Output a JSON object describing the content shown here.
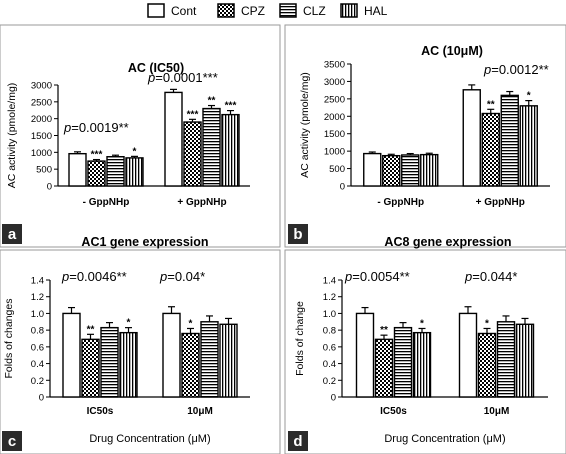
{
  "legend": [
    "Cont",
    "CPZ",
    "CLZ",
    "HAL"
  ],
  "series_styles": {
    "Cont": {
      "fill": "#ffffff",
      "pattern": "none"
    },
    "CPZ": {
      "fill": "#ffffff",
      "pattern": "checker"
    },
    "CLZ": {
      "fill": "#ffffff",
      "pattern": "horizontal-lines"
    },
    "HAL": {
      "fill": "#ffffff",
      "pattern": "vertical-lines"
    }
  },
  "panels": [
    {
      "label": "a",
      "background": "#ffffff",
      "label_color": "#2b2b2b"
    },
    {
      "label": "b",
      "background": "#ffffff",
      "label_color": "#2b2b2b"
    },
    {
      "label": "c",
      "background": "#ffffff",
      "label_color": "#2b2b2b"
    },
    {
      "label": "d",
      "background": "#ffffff",
      "label_color": "#2b2b2b"
    }
  ],
  "chart_data": [
    {
      "type": "bar",
      "title": "AC (IC50)",
      "xlabel": "",
      "ylabel": "AC activity (pmole/mg)",
      "ylim": [
        0,
        3000
      ],
      "yticks": [
        "0",
        "500",
        "1000",
        "1500",
        "2000",
        "2500",
        "3000"
      ],
      "categories": [
        "- GppNHp",
        "+ GppNHp"
      ],
      "series": [
        {
          "name": "Cont",
          "values": [
            960,
            2780
          ],
          "errors": [
            55,
            90
          ]
        },
        {
          "name": "CPZ",
          "values": [
            740,
            1900
          ],
          "errors": [
            45,
            80
          ]
        },
        {
          "name": "CLZ",
          "values": [
            870,
            2300
          ],
          "errors": [
            45,
            90
          ]
        },
        {
          "name": "HAL",
          "values": [
            835,
            2120
          ],
          "errors": [
            45,
            120
          ]
        }
      ],
      "significance": [
        [
          "***",
          "",
          "*"
        ],
        [
          "***",
          "**",
          "***"
        ]
      ],
      "pvalues": [
        {
          "p": "=0.0019**",
          "x": 0
        },
        {
          "p": "=0.0001***",
          "x": 1
        }
      ]
    },
    {
      "type": "bar",
      "title": "AC (10μM)",
      "xlabel": "",
      "ylabel": "AC activity (pmole/mg)",
      "ylim": [
        0,
        3500
      ],
      "yticks": [
        "0",
        "500",
        "1000",
        "1500",
        "2000",
        "2500",
        "3000",
        "3500"
      ],
      "categories": [
        "- GppNHp",
        "+ GppNHp"
      ],
      "series": [
        {
          "name": "Cont",
          "values": [
            930,
            2760
          ],
          "errors": [
            45,
            140
          ]
        },
        {
          "name": "CPZ",
          "values": [
            870,
            2080
          ],
          "errors": [
            40,
            120
          ]
        },
        {
          "name": "CLZ",
          "values": [
            890,
            2600
          ],
          "errors": [
            40,
            110
          ]
        },
        {
          "name": "HAL",
          "values": [
            900,
            2300
          ],
          "errors": [
            40,
            150
          ]
        }
      ],
      "significance": [
        [
          "",
          "",
          ""
        ],
        [
          "**",
          "",
          "*"
        ]
      ],
      "pvalues": [
        {
          "p": "=0.0012**",
          "x": 1
        }
      ]
    },
    {
      "type": "bar",
      "title": "AC1 gene expression",
      "xlabel": "Drug Concentration (μM)",
      "ylabel": "Folds of changes",
      "ylim": [
        0,
        1.4
      ],
      "yticks": [
        "0",
        "0.2",
        "0.4",
        "0.6",
        "0.8",
        "1.0",
        "1.2",
        "1.4"
      ],
      "categories": [
        "IC50s",
        "10μM"
      ],
      "series": [
        {
          "name": "Cont",
          "values": [
            1.0,
            1.0
          ],
          "errors": [
            0.07,
            0.08
          ]
        },
        {
          "name": "CPZ",
          "values": [
            0.69,
            0.76
          ],
          "errors": [
            0.06,
            0.06
          ]
        },
        {
          "name": "CLZ",
          "values": [
            0.83,
            0.9
          ],
          "errors": [
            0.06,
            0.07
          ]
        },
        {
          "name": "HAL",
          "values": [
            0.77,
            0.87
          ],
          "errors": [
            0.06,
            0.07
          ]
        }
      ],
      "significance": [
        [
          "**",
          "",
          "*"
        ],
        [
          "*",
          "",
          ""
        ]
      ],
      "pvalues": [
        {
          "p": "=0.0046**",
          "x": 0
        },
        {
          "p": "=0.04*",
          "x": 1
        }
      ]
    },
    {
      "type": "bar",
      "title": "AC8 gene expression",
      "xlabel": "Drug Concentration (μM)",
      "ylabel": "Folds of change",
      "ylim": [
        0,
        1.4
      ],
      "yticks": [
        "0",
        "0.2",
        "0.4",
        "0.6",
        "0.8",
        "1.0",
        "1.2",
        "1.4"
      ],
      "categories": [
        "IC50s",
        "10μM"
      ],
      "series": [
        {
          "name": "Cont",
          "values": [
            1.0,
            1.0
          ],
          "errors": [
            0.07,
            0.08
          ]
        },
        {
          "name": "CPZ",
          "values": [
            0.69,
            0.76
          ],
          "errors": [
            0.05,
            0.06
          ]
        },
        {
          "name": "CLZ",
          "values": [
            0.83,
            0.9
          ],
          "errors": [
            0.06,
            0.07
          ]
        },
        {
          "name": "HAL",
          "values": [
            0.77,
            0.87
          ],
          "errors": [
            0.05,
            0.07
          ]
        }
      ],
      "significance": [
        [
          "**",
          "",
          "*"
        ],
        [
          "*",
          "",
          ""
        ]
      ],
      "pvalues": [
        {
          "p": "=0.0054**",
          "x": 0
        },
        {
          "p": "=0.044*",
          "x": 1
        }
      ]
    }
  ]
}
